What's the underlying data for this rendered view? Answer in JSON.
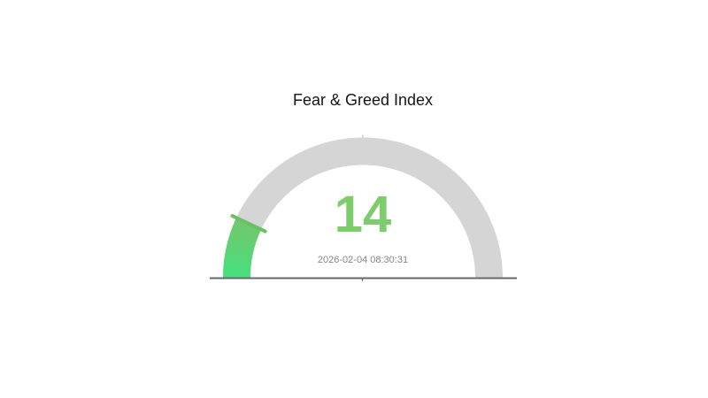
{
  "chart_data": {
    "type": "gauge",
    "title": "Fear & Greed Index",
    "value": 14,
    "min": 0,
    "max": 100,
    "start_angle_deg": 180,
    "end_angle_deg": 0,
    "timestamp": "2026-02-04 08:30:31",
    "layout_hints": {
      "legend": "none",
      "grid": false,
      "shape": "top-half-circle",
      "value_position": "center",
      "baseline_under_gauge": true
    },
    "colors": {
      "background": "#ffffff",
      "track": "#d5d5d5",
      "progress_gradient_start": "#46e07f",
      "progress_gradient_end": "#74c66b",
      "pointer_tick": "#68c067",
      "value_text": "#7ecd6d",
      "timestamp_text": "#868686",
      "title_text": "#151515",
      "baseline": "#686868",
      "minor_tick": "#c8c8c8"
    }
  }
}
